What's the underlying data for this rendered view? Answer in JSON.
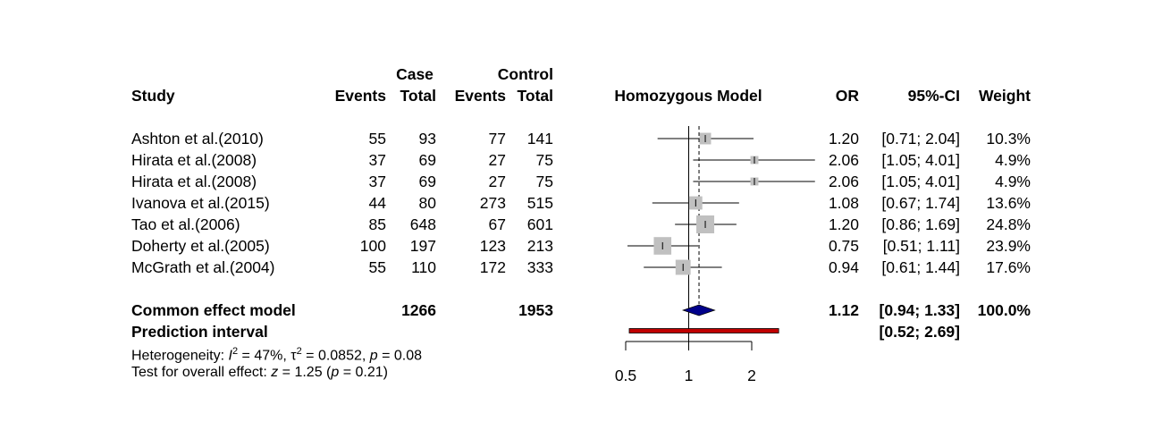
{
  "headers": {
    "case": "Case",
    "control": "Control",
    "study": "Study",
    "events1": "Events",
    "total1": "Total",
    "events2": "Events",
    "total2": "Total",
    "model": "Homozygous Model",
    "or": "OR",
    "ci": "95%-CI",
    "weight": "Weight"
  },
  "studies": [
    {
      "study": "Ashton et al.(2010)",
      "case_events": "55",
      "case_total": "93",
      "ctrl_events": "77",
      "ctrl_total": "141",
      "or": "1.20",
      "ci": "[0.71; 2.04]",
      "weight": "10.3%"
    },
    {
      "study": "Hirata et al.(2008)",
      "case_events": "37",
      "case_total": "69",
      "ctrl_events": "27",
      "ctrl_total": "75",
      "or": "2.06",
      "ci": "[1.05; 4.01]",
      "weight": "4.9%"
    },
    {
      "study": "Hirata et al.(2008)",
      "case_events": "37",
      "case_total": "69",
      "ctrl_events": "27",
      "ctrl_total": "75",
      "or": "2.06",
      "ci": "[1.05; 4.01]",
      "weight": "4.9%"
    },
    {
      "study": "Ivanova et al.(2015)",
      "case_events": "44",
      "case_total": "80",
      "ctrl_events": "273",
      "ctrl_total": "515",
      "or": "1.08",
      "ci": "[0.67; 1.74]",
      "weight": "13.6%"
    },
    {
      "study": "Tao et al.(2006)",
      "case_events": "85",
      "case_total": "648",
      "ctrl_events": "67",
      "ctrl_total": "601",
      "or": "1.20",
      "ci": "[0.86; 1.69]",
      "weight": "24.8%"
    },
    {
      "study": "Doherty et al.(2005)",
      "case_events": "100",
      "case_total": "197",
      "ctrl_events": "123",
      "ctrl_total": "213",
      "or": "0.75",
      "ci": "[0.51; 1.11]",
      "weight": "23.9%"
    },
    {
      "study": "McGrath et al.(2004)",
      "case_events": "55",
      "case_total": "110",
      "ctrl_events": "172",
      "ctrl_total": "333",
      "or": "0.94",
      "ci": "[0.61; 1.44]",
      "weight": "17.6%"
    }
  ],
  "common": {
    "label": "Common effect model",
    "case_total": "1266",
    "ctrl_total": "1953",
    "or": "1.12",
    "ci": "[0.94; 1.33]",
    "weight": "100.0%"
  },
  "prediction": {
    "label": "Prediction interval",
    "ci": "[0.52; 2.69]"
  },
  "heterogeneity": {
    "prefix": "Heterogeneity: ",
    "i_symbol": "I",
    "i_sup": "2",
    "i_value": " = 47%, ",
    "tau_symbol": "τ",
    "tau_sup": "2",
    "tau_value": " = 0.0852, ",
    "p_symbol": "p",
    "p_value": " = 0.08"
  },
  "overall": {
    "prefix": "Test for overall effect: ",
    "z_symbol": "z",
    "z_value": " = 1.25 (",
    "p_symbol": "p",
    "p_value": " = 0.21)"
  },
  "chart_data": {
    "type": "forest",
    "axis_scale": "log",
    "xlim": [
      0.5,
      2
    ],
    "ticks": [
      0.5,
      1,
      2
    ],
    "tick_labels": [
      "0.5",
      "1",
      "2"
    ],
    "reference_line": 1,
    "pooled_line": 1.12,
    "studies": [
      {
        "or": 1.2,
        "lower": 0.71,
        "upper": 2.04,
        "weight": 10.3
      },
      {
        "or": 2.06,
        "lower": 1.05,
        "upper": 4.01,
        "weight": 4.9
      },
      {
        "or": 2.06,
        "lower": 1.05,
        "upper": 4.01,
        "weight": 4.9
      },
      {
        "or": 1.08,
        "lower": 0.67,
        "upper": 1.74,
        "weight": 13.6
      },
      {
        "or": 1.2,
        "lower": 0.86,
        "upper": 1.69,
        "weight": 24.8
      },
      {
        "or": 0.75,
        "lower": 0.51,
        "upper": 1.11,
        "weight": 23.9
      },
      {
        "or": 0.94,
        "lower": 0.61,
        "upper": 1.44,
        "weight": 17.6
      }
    ],
    "common_effect": {
      "or": 1.12,
      "lower": 0.94,
      "upper": 1.33
    },
    "prediction_interval": {
      "lower": 0.52,
      "upper": 2.69
    },
    "colors": {
      "box": "#c0c0c0",
      "diamond": "#00008b",
      "prediction_fill": "#c00000"
    }
  }
}
